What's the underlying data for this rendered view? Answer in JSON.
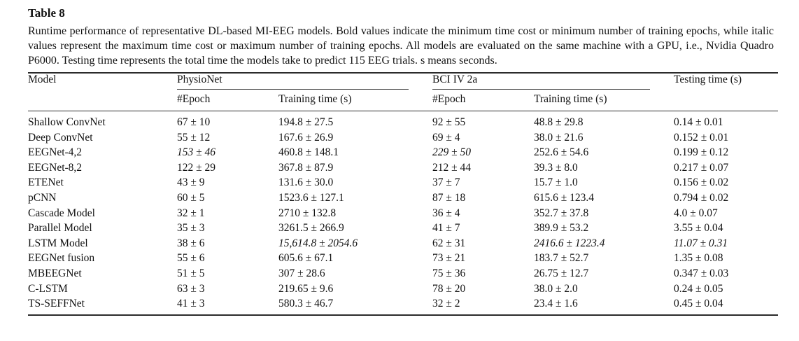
{
  "table": {
    "label": "Table 8",
    "caption": "Runtime performance of representative DL-based MI-EEG models. Bold values indicate the minimum time cost or minimum number of training epochs, while italic values represent the maximum time cost or maximum number of training epochs. All models are evaluated on the same machine with a GPU, i.e., Nvidia Quadro P6000. Testing time represents the total time the models take to predict 115 EEG trials. s means seconds.",
    "header": {
      "model": "Model",
      "group_physionet": "PhysioNet",
      "group_bci": "BCI IV 2a",
      "testing": "Testing time (s)",
      "sub_epoch": "#Epoch",
      "sub_training": "Training time (s)"
    },
    "rows": [
      {
        "model": "Shallow ConvNet",
        "cells": [
          {
            "t": "67 ± 10",
            "s": "n"
          },
          {
            "t": "194.8 ± 27.5",
            "s": "n"
          },
          {
            "t": "92 ± 55",
            "s": "n"
          },
          {
            "t": "48.8 ± 29.8",
            "s": "n"
          },
          {
            "t": "0.14 ± 0.01",
            "s": "b"
          }
        ]
      },
      {
        "model": "Deep ConvNet",
        "cells": [
          {
            "t": "55 ± 12",
            "s": "n"
          },
          {
            "t": "167.6 ± 26.9",
            "s": "n"
          },
          {
            "t": "69 ± 4",
            "s": "n"
          },
          {
            "t": "38.0 ± 21.6",
            "s": "n"
          },
          {
            "t": "0.152 ± 0.01",
            "s": "n"
          }
        ]
      },
      {
        "model": "EEGNet-4,2",
        "cells": [
          {
            "t": "153 ± 46",
            "s": "i"
          },
          {
            "t": "460.8 ± 148.1",
            "s": "n"
          },
          {
            "t": "229 ± 50",
            "s": "i"
          },
          {
            "t": "252.6 ± 54.6",
            "s": "n"
          },
          {
            "t": "0.199 ± 0.12",
            "s": "n"
          }
        ]
      },
      {
        "model": "EEGNet-8,2",
        "cells": [
          {
            "t": "122 ± 29",
            "s": "n"
          },
          {
            "t": "367.8 ± 87.9",
            "s": "n"
          },
          {
            "t": "212 ± 44",
            "s": "n"
          },
          {
            "t": "39.3 ± 8.0",
            "s": "n"
          },
          {
            "t": "0.217 ± 0.07",
            "s": "n"
          }
        ]
      },
      {
        "model": "ETENet",
        "cells": [
          {
            "t": "43 ± 9",
            "s": "n"
          },
          {
            "t": "131.6 ± 30.0",
            "s": "b"
          },
          {
            "t": "37 ± 7",
            "s": "n"
          },
          {
            "t": "15.7 ± 1.0",
            "s": "b"
          },
          {
            "t": "0.156 ± 0.02",
            "s": "n"
          }
        ]
      },
      {
        "model": "pCNN",
        "cells": [
          {
            "t": "60 ± 5",
            "s": "n"
          },
          {
            "t": "1523.6 ± 127.1",
            "s": "n"
          },
          {
            "t": "87 ± 18",
            "s": "n"
          },
          {
            "t": "615.6 ± 123.4",
            "s": "n"
          },
          {
            "t": "0.794 ± 0.02",
            "s": "n"
          }
        ]
      },
      {
        "model": "Cascade Model",
        "cells": [
          {
            "t": "32 ± 1",
            "s": "b"
          },
          {
            "t": "2710 ± 132.8",
            "s": "n"
          },
          {
            "t": "36 ± 4",
            "s": "n"
          },
          {
            "t": "352.7 ± 37.8",
            "s": "n"
          },
          {
            "t": "4.0 ± 0.07",
            "s": "n"
          }
        ]
      },
      {
        "model": "Parallel Model",
        "cells": [
          {
            "t": "35 ± 3",
            "s": "n"
          },
          {
            "t": "3261.5 ± 266.9",
            "s": "n"
          },
          {
            "t": "41 ± 7",
            "s": "n"
          },
          {
            "t": "389.9 ± 53.2",
            "s": "n"
          },
          {
            "t": "3.55 ± 0.04",
            "s": "n"
          }
        ]
      },
      {
        "model": "LSTM Model",
        "cells": [
          {
            "t": "38 ± 6",
            "s": "n"
          },
          {
            "t": "15,614.8 ± 2054.6",
            "s": "i"
          },
          {
            "t": "62 ± 31",
            "s": "n"
          },
          {
            "t": "2416.6 ± 1223.4",
            "s": "i"
          },
          {
            "t": "11.07 ± 0.31",
            "s": "i"
          }
        ]
      },
      {
        "model": "EEGNet fusion",
        "cells": [
          {
            "t": "55 ± 6",
            "s": "n"
          },
          {
            "t": "605.6 ± 67.1",
            "s": "n"
          },
          {
            "t": "73 ± 21",
            "s": "n"
          },
          {
            "t": "183.7 ± 52.7",
            "s": "n"
          },
          {
            "t": "1.35 ± 0.08",
            "s": "n"
          }
        ]
      },
      {
        "model": "MBEEGNet",
        "cells": [
          {
            "t": "51 ± 5",
            "s": "n"
          },
          {
            "t": "307 ± 28.6",
            "s": "n"
          },
          {
            "t": "75 ± 36",
            "s": "n"
          },
          {
            "t": "26.75 ± 12.7",
            "s": "n"
          },
          {
            "t": "0.347 ± 0.03",
            "s": "n"
          }
        ]
      },
      {
        "model": "C-LSTM",
        "cells": [
          {
            "t": "63 ± 3",
            "s": "n"
          },
          {
            "t": "219.65 ± 9.6",
            "s": "n"
          },
          {
            "t": "78 ± 20",
            "s": "n"
          },
          {
            "t": "38.0 ± 2.0",
            "s": "n"
          },
          {
            "t": "0.24 ± 0.05",
            "s": "n"
          }
        ]
      },
      {
        "model": "TS-SEFFNet",
        "cells": [
          {
            "t": "41 ± 3",
            "s": "n"
          },
          {
            "t": "580.3 ± 46.7",
            "s": "n"
          },
          {
            "t": "32 ± 2",
            "s": "b"
          },
          {
            "t": "23.4 ± 1.6",
            "s": "n"
          },
          {
            "t": "0.45 ± 0.04",
            "s": "n"
          }
        ]
      }
    ]
  }
}
